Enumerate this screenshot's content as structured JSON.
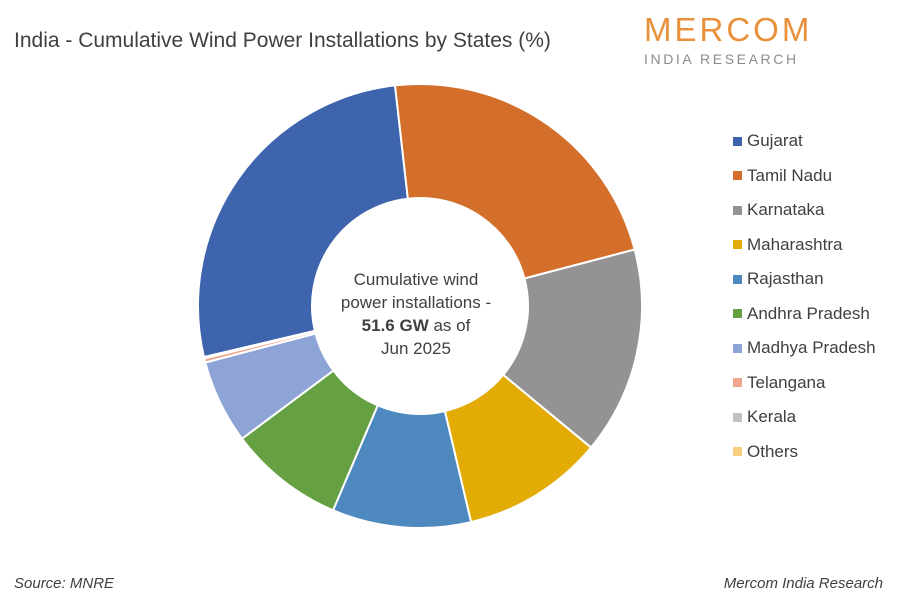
{
  "header": {
    "title": "India - Cumulative Wind Power Installations by States (%)"
  },
  "logo": {
    "main": "MERCOM",
    "sub": "INDIA RESEARCH"
  },
  "center": {
    "line1": "Cumulative wind",
    "line2": "power installations -",
    "value": "51.6 GW",
    "line3_rest": " as of",
    "line4": "Jun 2025"
  },
  "footer": {
    "source": "Source: MNRE",
    "credit": "Mercom India Research"
  },
  "chart_data": {
    "type": "pie",
    "variant": "donut",
    "legend_position": "right",
    "categories": [
      "Gujarat",
      "Tamil Nadu",
      "Karnataka",
      "Maharashtra",
      "Rajasthan",
      "Andhra Pradesh",
      "Madhya Pradesh",
      "Telangana",
      "Kerala",
      "Others"
    ],
    "values": [
      26.9,
      22.7,
      15.1,
      10.3,
      10.1,
      8.4,
      6.1,
      0.3,
      0.1,
      0.0
    ],
    "colors": [
      "#3e64ae",
      "#d36e2b",
      "#939393",
      "#e2ab06",
      "#4d88bf",
      "#65a042",
      "#8ea4d6",
      "#eea78d",
      "#c2c2c2",
      "#f7cf7f"
    ]
  }
}
